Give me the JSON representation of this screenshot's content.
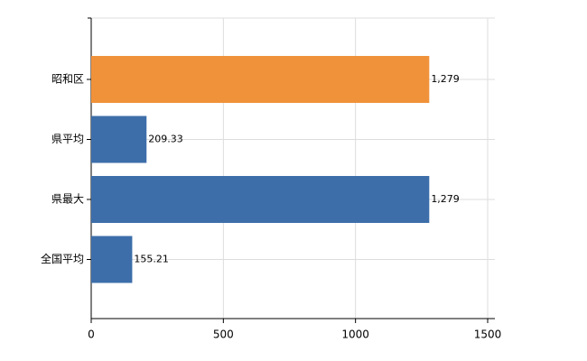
{
  "chart_data": {
    "type": "bar",
    "orientation": "horizontal",
    "categories": [
      "昭和区",
      "県平均",
      "県最大",
      "全国平均"
    ],
    "values": [
      1279,
      209.33,
      1279,
      155.21
    ],
    "value_labels": [
      "1,279",
      "209.33",
      "1,279",
      "155.21"
    ],
    "colors": [
      "#f0923a",
      "#3d6eaa",
      "#3d6eaa",
      "#3d6eaa"
    ],
    "xlim": [
      0,
      1500
    ],
    "xticks": [
      0,
      500,
      1000,
      1500
    ],
    "grid": true
  }
}
